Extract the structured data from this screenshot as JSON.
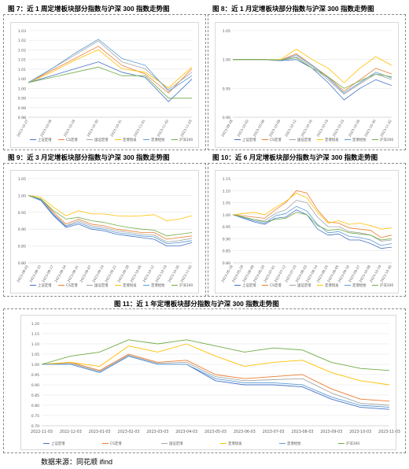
{
  "source": "数据来源：同花顺 ifind",
  "colors": {
    "上证定增": "#4472c4",
    "CS定增": "#ed7d31",
    "国证定增": "#a5a5a5",
    "定增锐发": "#ffc000",
    "定增经始": "#5b9bd5",
    "沪深300": "#70ad47"
  },
  "chart_data": [
    {
      "type": "line",
      "title": "图 7：近 1 周定增板块部分指数与沪深 300 指数走势图",
      "categories": [
        "2023-10-27",
        "2023-10-28",
        "2023-10-29",
        "2023-10-30",
        "2023-10-31",
        "2023-11-01",
        "2023-11-02",
        "2023-11-03"
      ],
      "ylim": [
        0.98,
        1.03
      ],
      "yticks": [
        "1.03",
        "1.02",
        "1.02",
        "1.01",
        "1.01",
        "1.00",
        "1.00",
        "0.99",
        "0.99",
        "0.98"
      ],
      "legend": [
        "上证定增",
        "CS定增",
        "国证定增",
        "定增锐发",
        "定增经始",
        "沪深300"
      ],
      "series": [
        {
          "name": "上证定增",
          "values": [
            1.0,
            1.004,
            1.008,
            1.012,
            1.006,
            1.003,
            0.989,
            1.002
          ]
        },
        {
          "name": "CS定增",
          "values": [
            1.0,
            1.007,
            1.014,
            1.021,
            1.01,
            1.005,
            0.994,
            1.008
          ]
        },
        {
          "name": "国证定增",
          "values": [
            1.0,
            1.008,
            1.016,
            1.024,
            1.012,
            1.008,
            0.996,
            1.006
          ]
        },
        {
          "name": "定增锐发",
          "values": [
            1.0,
            1.006,
            1.013,
            1.019,
            1.008,
            1.006,
            0.997,
            1.009
          ]
        },
        {
          "name": "定增经始",
          "values": [
            1.0,
            1.008,
            1.017,
            1.025,
            1.014,
            1.01,
            0.995,
            1.004
          ]
        },
        {
          "name": "沪深300",
          "values": [
            1.0,
            1.003,
            1.006,
            1.009,
            1.004,
            1.004,
            0.991,
            0.991
          ]
        }
      ]
    },
    {
      "type": "line",
      "title": "图 8：近 1 月定增板块部分指数与沪深 300 指数走势图",
      "categories": [
        "2023-09-28",
        "2023-10-02",
        "2023-10-06",
        "2023-10-09",
        "2023-10-12",
        "2023-10-16",
        "2023-10-19",
        "2023-10-23",
        "2023-10-26",
        "2023-10-30",
        "2023-11-02"
      ],
      "ylim": [
        0.9,
        1.05
      ],
      "yticks": [
        "1.05",
        "1.00",
        "0.95",
        "0.90"
      ],
      "legend": [
        "上证定增",
        "CS定增",
        "国证定增",
        "定增锐发",
        "定增经始",
        "沪深300"
      ],
      "series": [
        {
          "name": "上证定增",
          "values": [
            1.0,
            1.0,
            1.0,
            0.998,
            1.0,
            0.985,
            0.96,
            0.93,
            0.95,
            0.965,
            0.955
          ]
        },
        {
          "name": "CS定增",
          "values": [
            1.0,
            1.0,
            1.0,
            0.999,
            1.01,
            0.99,
            0.97,
            0.945,
            0.965,
            0.985,
            0.975
          ]
        },
        {
          "name": "国证定增",
          "values": [
            1.0,
            1.0,
            1.0,
            0.999,
            1.005,
            0.988,
            0.965,
            0.94,
            0.958,
            0.975,
            0.965
          ]
        },
        {
          "name": "定增锐发",
          "values": [
            1.0,
            1.0,
            1.0,
            1.0,
            1.018,
            1.0,
            0.985,
            0.96,
            0.985,
            1.005,
            0.99
          ]
        },
        {
          "name": "定增经始",
          "values": [
            1.0,
            1.0,
            1.0,
            0.998,
            1.008,
            0.99,
            0.968,
            0.942,
            0.96,
            0.978,
            0.968
          ]
        },
        {
          "name": "沪深300",
          "values": [
            1.0,
            1.0,
            1.0,
            0.999,
            1.003,
            0.985,
            0.97,
            0.95,
            0.963,
            0.975,
            0.97
          ]
        }
      ]
    },
    {
      "type": "line",
      "title": "图 9：近 3 月定增板块部分指数与沪深 300 指数走势图",
      "categories": [
        "2023-08-03",
        "2023-08-10",
        "2023-08-17",
        "2023-08-24",
        "2023-08-31",
        "2023-09-07",
        "2023-09-14",
        "2023-09-21",
        "2023-09-28",
        "2023-10-05",
        "2023-10-12",
        "2023-10-19",
        "2023-10-26",
        "2023-11-02"
      ],
      "ylim": [
        0.8,
        1.05
      ],
      "yticks": [
        "1.05",
        "1.00",
        "0.95",
        "0.90",
        "0.85",
        "0.80"
      ],
      "legend": [
        "上证定增",
        "CS定增",
        "国证定增",
        "定增锐发",
        "定增经始",
        "沪深300"
      ],
      "series": [
        {
          "name": "上证定增",
          "values": [
            1.0,
            0.985,
            0.94,
            0.905,
            0.915,
            0.9,
            0.895,
            0.885,
            0.88,
            0.875,
            0.87,
            0.85,
            0.85,
            0.86
          ]
        },
        {
          "name": "CS定增",
          "values": [
            1.0,
            0.99,
            0.95,
            0.915,
            0.93,
            0.915,
            0.91,
            0.9,
            0.895,
            0.89,
            0.89,
            0.87,
            0.875,
            0.88
          ]
        },
        {
          "name": "国证定增",
          "values": [
            1.0,
            0.988,
            0.945,
            0.91,
            0.925,
            0.91,
            0.905,
            0.895,
            0.89,
            0.885,
            0.882,
            0.862,
            0.866,
            0.873
          ]
        },
        {
          "name": "定增锐发",
          "values": [
            1.0,
            0.995,
            0.965,
            0.94,
            0.955,
            0.945,
            0.945,
            0.94,
            0.938,
            0.94,
            0.943,
            0.925,
            0.93,
            0.94
          ]
        },
        {
          "name": "定增经始",
          "values": [
            1.0,
            0.987,
            0.943,
            0.908,
            0.92,
            0.905,
            0.9,
            0.89,
            0.885,
            0.88,
            0.877,
            0.857,
            0.86,
            0.866
          ]
        },
        {
          "name": "沪深300",
          "values": [
            1.0,
            0.99,
            0.955,
            0.93,
            0.935,
            0.925,
            0.92,
            0.912,
            0.905,
            0.9,
            0.897,
            0.88,
            0.885,
            0.89
          ]
        }
      ]
    },
    {
      "type": "line",
      "title": "图 10：近 6 月定增板块部分指数与沪深 300 指数走势图",
      "categories": [
        "2023-05-18",
        "2023-05-29",
        "2023-06-09",
        "2023-06-20",
        "2023-07-01",
        "2023-07-12",
        "2023-07-23",
        "2023-08-03",
        "2023-08-14",
        "2023-08-25",
        "2023-09-05",
        "2023-09-16",
        "2023-09-27",
        "2023-10-08",
        "2023-10-19",
        "2023-10-30"
      ],
      "ylim": [
        0.8,
        1.15
      ],
      "yticks": [
        "1.15",
        "1.10",
        "1.05",
        "1.00",
        "0.95",
        "0.90",
        "0.85",
        "0.80"
      ],
      "legend": [
        "上证定增",
        "CS定增",
        "国证定增",
        "定增锐发",
        "定增经始",
        "沪深300"
      ],
      "series": [
        {
          "name": "上证定增",
          "values": [
            1.0,
            0.985,
            0.97,
            0.96,
            0.985,
            0.99,
            1.02,
            1.0,
            0.94,
            0.915,
            0.92,
            0.895,
            0.895,
            0.88,
            0.86,
            0.865
          ]
        },
        {
          "name": "CS定增",
          "values": [
            1.0,
            0.995,
            0.99,
            0.985,
            1.02,
            1.05,
            1.1,
            1.09,
            1.02,
            0.97,
            0.965,
            0.945,
            0.94,
            0.935,
            0.905,
            0.915
          ]
        },
        {
          "name": "国证定增",
          "values": [
            1.0,
            0.99,
            0.98,
            0.975,
            1.005,
            1.02,
            1.06,
            1.05,
            0.99,
            0.95,
            0.95,
            0.93,
            0.925,
            0.915,
            0.89,
            0.895
          ]
        },
        {
          "name": "定增锐发",
          "values": [
            1.0,
            1.005,
            1.01,
            1.0,
            1.03,
            1.055,
            1.09,
            1.07,
            1.01,
            0.965,
            0.975,
            0.96,
            0.965,
            0.955,
            0.94,
            0.945
          ]
        },
        {
          "name": "定增经始",
          "values": [
            1.0,
            0.988,
            0.975,
            0.965,
            0.995,
            1.005,
            1.035,
            1.015,
            0.96,
            0.925,
            0.93,
            0.91,
            0.905,
            0.895,
            0.872,
            0.88
          ]
        },
        {
          "name": "沪深300",
          "values": [
            1.0,
            0.99,
            0.98,
            0.97,
            0.98,
            0.985,
            1.01,
            1.0,
            0.955,
            0.935,
            0.94,
            0.925,
            0.92,
            0.915,
            0.895,
            0.9
          ]
        }
      ]
    },
    {
      "type": "line",
      "title": "图 11：近 1 年定增板块部分指数与沪深 300 指数走势图",
      "categories": [
        "2022-11-03",
        "2022-12-03",
        "2023-01-03",
        "2023-02-03",
        "2023-03-03",
        "2023-04-03",
        "2023-05-03",
        "2023-06-03",
        "2023-07-03",
        "2023-08-03",
        "2023-09-03",
        "2023-10-03",
        "2023-11-03"
      ],
      "ylim": [
        0.7,
        1.2
      ],
      "yticks": [
        "1.20",
        "1.15",
        "1.10",
        "1.05",
        "1.00",
        "0.95",
        "0.90",
        "0.85",
        "0.80",
        "0.75",
        "0.70"
      ],
      "legend": [
        "上证定增",
        "CS定增",
        "国证定增",
        "定增锐发",
        "定增经始",
        "沪深300"
      ],
      "series": [
        {
          "name": "上证定增",
          "values": [
            1.0,
            1.0,
            0.96,
            1.04,
            1.0,
            1.0,
            0.92,
            0.9,
            0.9,
            0.89,
            0.83,
            0.79,
            0.78
          ]
        },
        {
          "name": "CS定增",
          "values": [
            1.0,
            1.01,
            0.97,
            1.05,
            1.01,
            1.02,
            0.95,
            0.93,
            0.94,
            0.95,
            0.88,
            0.83,
            0.82
          ]
        },
        {
          "name": "国证定增",
          "values": [
            1.0,
            1.005,
            0.965,
            1.045,
            1.005,
            1.01,
            0.94,
            0.92,
            0.925,
            0.93,
            0.86,
            0.81,
            0.8
          ]
        },
        {
          "name": "定增锐发",
          "values": [
            1.0,
            1.01,
            0.99,
            1.09,
            1.06,
            1.1,
            1.04,
            0.99,
            1.01,
            1.02,
            0.96,
            0.92,
            0.9
          ]
        },
        {
          "name": "定增经始",
          "values": [
            1.0,
            1.0,
            0.96,
            1.04,
            1.0,
            1.0,
            0.93,
            0.91,
            0.91,
            0.9,
            0.84,
            0.8,
            0.79
          ]
        },
        {
          "name": "沪深300",
          "values": [
            1.0,
            1.04,
            1.06,
            1.12,
            1.1,
            1.12,
            1.09,
            1.06,
            1.08,
            1.07,
            1.01,
            0.98,
            0.97
          ]
        }
      ]
    }
  ]
}
